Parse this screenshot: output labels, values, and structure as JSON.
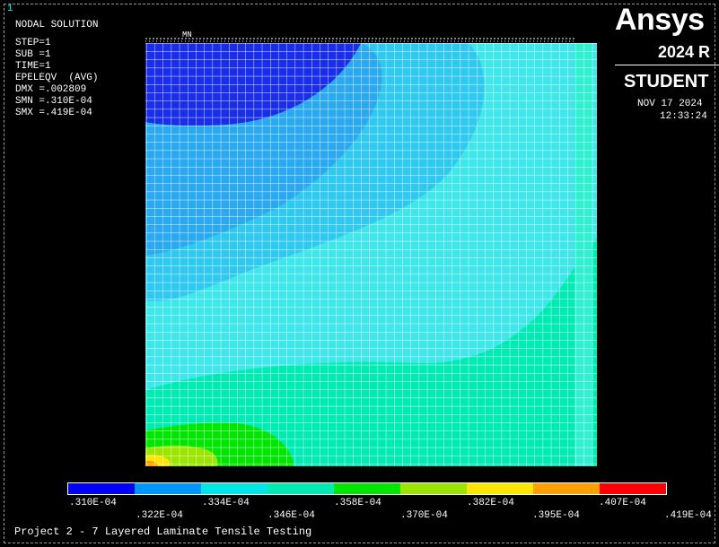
{
  "window": {
    "number": "1"
  },
  "solution_info": {
    "title": "NODAL SOLUTION",
    "step": "STEP=1",
    "sub": "SUB =1",
    "time": "TIME=1",
    "result": "EPELEQV  (AVG)",
    "dmx": "DMX =.002809",
    "smn": "SMN =.310E-04",
    "smx": "SMX =.419E-04"
  },
  "branding": {
    "logo_text": "Ansys",
    "version": "2024 R",
    "edition": "STUDENT",
    "date": "NOV 17 2024",
    "time": "12:33:24"
  },
  "markers": {
    "mn": "MN"
  },
  "contour_colors": [
    "#0000ff",
    "#0096ff",
    "#00e6e6",
    "#00ebb4",
    "#00e600",
    "#9be600",
    "#ffe600",
    "#ffa000",
    "#ff0000"
  ],
  "legend": {
    "top_labels": [
      ".310E-04",
      ".334E-04",
      ".358E-04",
      ".382E-04",
      ".407E-04"
    ],
    "bottom_labels": [
      ".322E-04",
      ".346E-04",
      ".370E-04",
      ".395E-04",
      ".419E-04"
    ]
  },
  "caption": "Project 2 - 7 Layered Laminate Tensile Testing"
}
